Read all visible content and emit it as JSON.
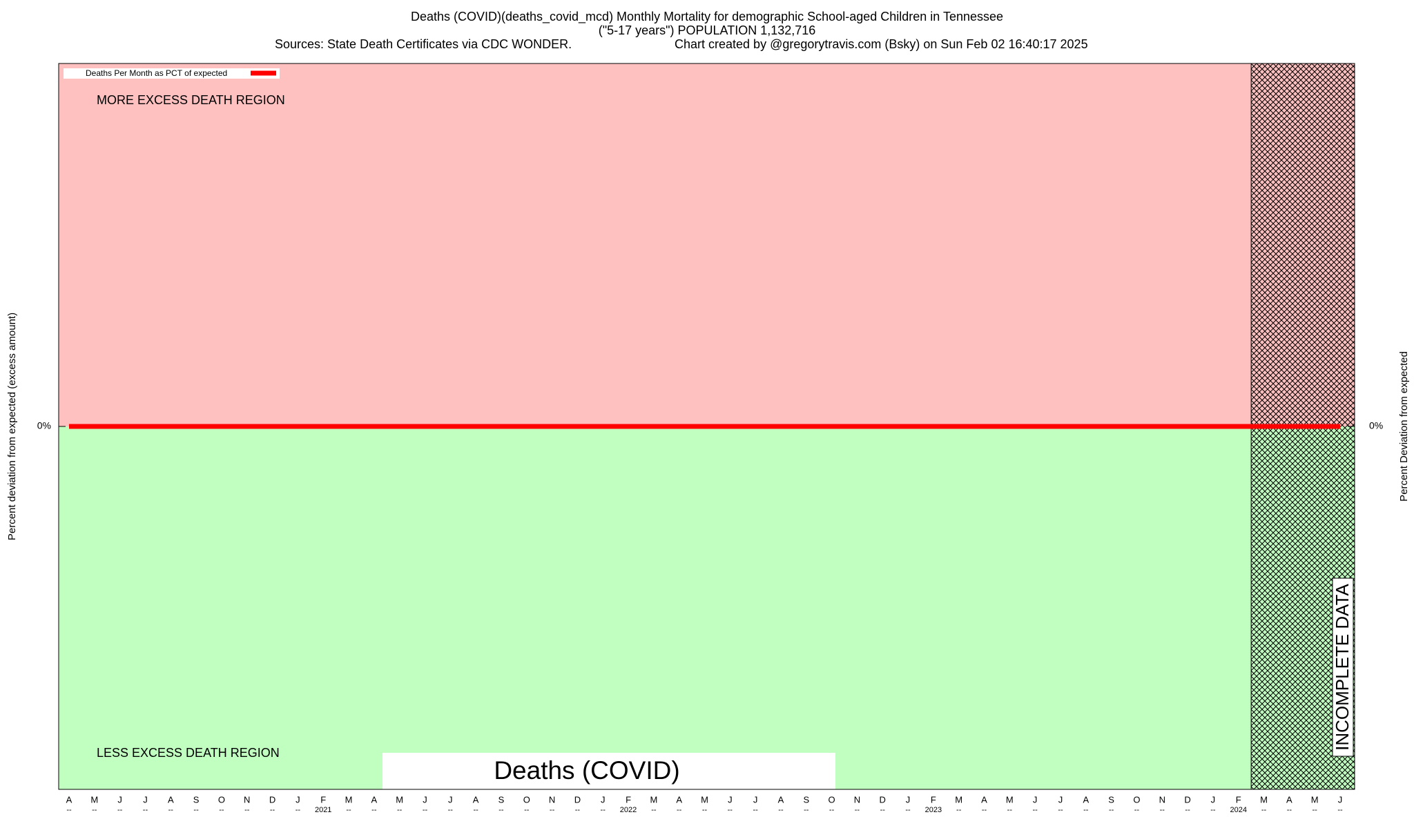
{
  "chart_data": {
    "type": "line",
    "title": "Deaths (COVID)(deaths_covid_mcd) Monthly Mortality for demographic School-aged Children in Tennessee",
    "subtitle": "(\"5-17 years\") POPULATION 1,132,716",
    "source": "Sources: State Death Certificates via CDC WONDER.",
    "credit": "Chart created by @gregorytravis.com (Bsky) on Sun Feb 02 16:40:17 2025",
    "ylabel": "Percent deviation from expected (excess amount)",
    "y2label": "Percent Deviation from expected",
    "upper_region_label": "MORE EXCESS DEATH REGION",
    "lower_region_label": "LESS EXCESS DEATH REGION",
    "upper_region_color": "#ffc0c0",
    "lower_region_color": "#c0ffc0",
    "watermark": "Deaths (COVID)",
    "incomplete_label": "INCOMPLETE DATA",
    "categories": [
      "A",
      "M",
      "J",
      "J",
      "A",
      "S",
      "O",
      "N",
      "D",
      "J",
      "F",
      "M",
      "A",
      "M",
      "J",
      "J",
      "A",
      "S",
      "O",
      "N",
      "D",
      "J",
      "F",
      "M",
      "A",
      "M",
      "J",
      "J",
      "A",
      "S",
      "O",
      "N",
      "D",
      "J",
      "F",
      "M",
      "A",
      "M",
      "J",
      "J",
      "A",
      "S",
      "O",
      "N",
      "D",
      "J",
      "F",
      "M",
      "A",
      "M",
      "J"
    ],
    "sublabels": [
      "--",
      "--",
      "--",
      "--",
      "--",
      "--",
      "--",
      "--",
      "--",
      "--",
      "2021",
      "--",
      "--",
      "--",
      "--",
      "--",
      "--",
      "--",
      "--",
      "--",
      "--",
      "--",
      "2022",
      "--",
      "--",
      "--",
      "--",
      "--",
      "--",
      "--",
      "--",
      "--",
      "--",
      "--",
      "2023",
      "--",
      "--",
      "--",
      "--",
      "--",
      "--",
      "--",
      "--",
      "--",
      "--",
      "--",
      "2024",
      "--",
      "--",
      "--",
      "--"
    ],
    "series": [
      {
        "name": "Deaths Per Month as PCT of expected",
        "color": "#ff0000",
        "values": [
          0,
          0,
          0,
          0,
          0,
          0,
          0,
          0,
          0,
          0,
          0,
          0,
          0,
          0,
          0,
          0,
          0,
          0,
          0,
          0,
          0,
          0,
          0,
          0,
          0,
          0,
          0,
          0,
          0,
          0,
          0,
          0,
          0,
          0,
          0,
          0,
          0,
          0,
          0,
          0,
          0,
          0,
          0,
          0,
          0,
          0,
          0,
          0,
          0,
          0,
          0
        ]
      }
    ],
    "ylim": [
      -100,
      100
    ],
    "yticks": [
      {
        "value": 0,
        "label": "0%"
      }
    ],
    "y2lim": [
      -100,
      100
    ],
    "y2ticks": [
      {
        "value": 0,
        "label": "0%"
      }
    ],
    "grid": false,
    "legend": "upper left"
  }
}
